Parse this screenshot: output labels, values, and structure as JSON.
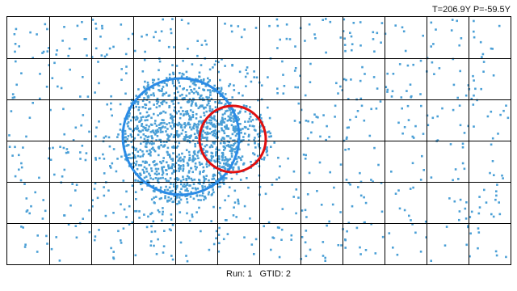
{
  "header": {
    "readout": "T=206.9Υ P=-59.5Υ"
  },
  "footer": {
    "run": "Run: 1",
    "gtid": "GTID: 2"
  },
  "view": {
    "grid_columns": 12,
    "grid_rows": 6,
    "grid_color": "#000000",
    "hit_color": "#4a9fd6",
    "background": "#ffffff",
    "rings": [
      {
        "name": "blue-ring",
        "color": "#2a8be6"
      },
      {
        "name": "red-ring",
        "color": "#e01010"
      }
    ]
  }
}
